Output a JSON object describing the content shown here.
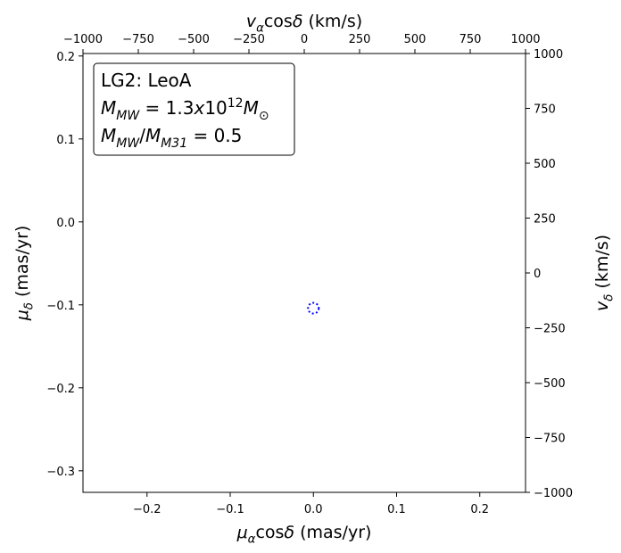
{
  "chart_data": {
    "type": "scatter",
    "xlabel": [
      {
        "text": "μ",
        "style": "italic"
      },
      {
        "text": "α",
        "style": "sub"
      },
      {
        "text": "cos"
      },
      {
        "text": "δ",
        "style": "italic"
      },
      {
        "text": " (mas/yr)"
      }
    ],
    "ylabel": [
      {
        "text": "μ",
        "style": "italic"
      },
      {
        "text": "δ",
        "style": "sub"
      },
      {
        "text": " (mas/yr)"
      }
    ],
    "x2label": [
      {
        "text": "v",
        "style": "italic"
      },
      {
        "text": "α",
        "style": "sub"
      },
      {
        "text": "cos"
      },
      {
        "text": "δ",
        "style": "italic"
      },
      {
        "text": " (km/s)"
      }
    ],
    "y2label": [
      {
        "text": "v",
        "style": "italic"
      },
      {
        "text": "δ",
        "style": "sub"
      },
      {
        "text": " (km/s)"
      }
    ],
    "annotation": [
      [
        {
          "text": "LG2: LeoA"
        }
      ],
      [
        {
          "text": "M",
          "style": "italic"
        },
        {
          "text": "MW",
          "style": "sub"
        },
        {
          "text": " = 1.3"
        },
        {
          "text": "x",
          "style": "italic"
        },
        {
          "text": "10"
        },
        {
          "text": "12",
          "style": "sup"
        },
        {
          "text": "M",
          "style": "italic"
        },
        {
          "text": "⊙",
          "style": "sub"
        }
      ],
      [
        {
          "text": "M",
          "style": "italic"
        },
        {
          "text": "MW",
          "style": "sub"
        },
        {
          "text": "/"
        },
        {
          "text": "M",
          "style": "italic"
        },
        {
          "text": "M31",
          "style": "sub"
        },
        {
          "text": " = 0.5"
        }
      ]
    ],
    "xlim": [
      -0.277,
      0.255
    ],
    "xticks": [
      {
        "value": -0.2,
        "label": "−0.2"
      },
      {
        "value": -0.1,
        "label": "−0.1"
      },
      {
        "value": 0,
        "label": "0.0"
      },
      0.1,
      0.2
    ],
    "ylim": [
      -0.326,
      0.203
    ],
    "yticks": [
      {
        "value": -0.3,
        "label": "−0.3"
      },
      {
        "value": -0.2,
        "label": "−0.2"
      },
      {
        "value": -0.1,
        "label": "−0.1"
      },
      {
        "value": 0,
        "label": "0.0"
      },
      0.1,
      0.2
    ],
    "x2lim": [
      -1000,
      1000
    ],
    "x2ticks": [
      {
        "value": -1000,
        "label": "−1000"
      },
      {
        "value": -750,
        "label": "−750"
      },
      {
        "value": -500,
        "label": "−500"
      },
      {
        "value": -250,
        "label": "−250"
      },
      0,
      250,
      500,
      750,
      1000
    ],
    "y2lim": [
      -1000,
      1000
    ],
    "y2ticks": [
      {
        "value": -1000,
        "label": "−1000"
      },
      {
        "value": -750,
        "label": "−750"
      },
      {
        "value": -500,
        "label": "−500"
      },
      {
        "value": -250,
        "label": "−250"
      },
      0,
      250,
      500,
      750,
      1000
    ],
    "series": [
      {
        "color": "blue",
        "linestyle": "dotted",
        "x": [
          0.0
        ],
        "y": [
          -0.104
        ]
      }
    ]
  }
}
